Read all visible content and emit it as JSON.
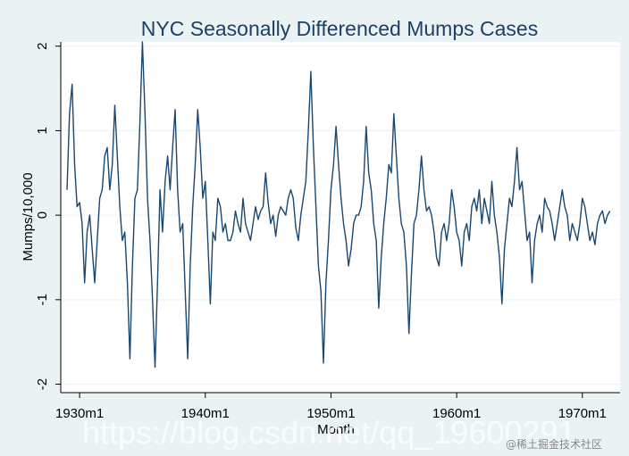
{
  "chart_data": {
    "type": "line",
    "title": "NYC Seasonally Differenced Mumps Cases",
    "xlabel": "Month",
    "ylabel": "Mumps/10,000",
    "xlim": [
      1928.5,
      1973.0
    ],
    "ylim": [
      -2.1,
      2.05
    ],
    "x_ticks": [
      {
        "value": 1930,
        "label": "1930m1"
      },
      {
        "value": 1940,
        "label": "1940m1"
      },
      {
        "value": 1950,
        "label": "1950m1"
      },
      {
        "value": 1960,
        "label": "1960m1"
      },
      {
        "value": 1970,
        "label": "1970m1"
      }
    ],
    "y_ticks": [
      {
        "value": 2,
        "label": "2"
      },
      {
        "value": 1,
        "label": "1"
      },
      {
        "value": 0,
        "label": "0"
      },
      {
        "value": -1,
        "label": "-1"
      },
      {
        "value": -2,
        "label": "-2"
      }
    ],
    "grid": true,
    "legend": "none",
    "colors": {
      "line": "#1a476f",
      "title": "#1e3f66",
      "background": "#eaf2f3",
      "plot_area": "#ffffff"
    },
    "series": [
      {
        "values": [
          [
            1929.0,
            0.3
          ],
          [
            1929.2,
            1.2
          ],
          [
            1929.4,
            1.55
          ],
          [
            1929.6,
            0.6
          ],
          [
            1929.8,
            0.1
          ],
          [
            1930.0,
            0.15
          ],
          [
            1930.2,
            -0.1
          ],
          [
            1930.4,
            -0.8
          ],
          [
            1930.6,
            -0.2
          ],
          [
            1930.8,
            0.0
          ],
          [
            1931.0,
            -0.4
          ],
          [
            1931.2,
            -0.8
          ],
          [
            1931.4,
            -0.3
          ],
          [
            1931.6,
            0.2
          ],
          [
            1931.8,
            0.3
          ],
          [
            1932.0,
            0.7
          ],
          [
            1932.2,
            0.8
          ],
          [
            1932.4,
            0.3
          ],
          [
            1932.6,
            0.6
          ],
          [
            1932.8,
            1.3
          ],
          [
            1933.0,
            0.7
          ],
          [
            1933.2,
            0.1
          ],
          [
            1933.4,
            -0.3
          ],
          [
            1933.6,
            -0.2
          ],
          [
            1933.8,
            -0.8
          ],
          [
            1934.0,
            -1.7
          ],
          [
            1934.2,
            -0.6
          ],
          [
            1934.4,
            0.2
          ],
          [
            1934.6,
            0.3
          ],
          [
            1934.8,
            1.1
          ],
          [
            1935.0,
            2.05
          ],
          [
            1935.2,
            1.2
          ],
          [
            1935.4,
            0.2
          ],
          [
            1935.6,
            -0.3
          ],
          [
            1935.8,
            -1.0
          ],
          [
            1936.0,
            -1.8
          ],
          [
            1936.2,
            -0.8
          ],
          [
            1936.4,
            0.3
          ],
          [
            1936.6,
            -0.2
          ],
          [
            1936.8,
            0.4
          ],
          [
            1937.0,
            0.7
          ],
          [
            1937.2,
            0.3
          ],
          [
            1937.4,
            0.8
          ],
          [
            1937.6,
            1.25
          ],
          [
            1937.8,
            0.3
          ],
          [
            1938.0,
            -0.2
          ],
          [
            1938.2,
            -0.1
          ],
          [
            1938.4,
            -0.9
          ],
          [
            1938.6,
            -1.7
          ],
          [
            1938.8,
            -0.6
          ],
          [
            1939.0,
            0.1
          ],
          [
            1939.2,
            0.6
          ],
          [
            1939.4,
            1.25
          ],
          [
            1939.6,
            0.8
          ],
          [
            1939.8,
            0.2
          ],
          [
            1940.0,
            0.4
          ],
          [
            1940.2,
            -0.3
          ],
          [
            1940.4,
            -1.05
          ],
          [
            1940.6,
            -0.2
          ],
          [
            1940.8,
            -0.3
          ],
          [
            1941.0,
            0.2
          ],
          [
            1941.2,
            0.1
          ],
          [
            1941.4,
            -0.2
          ],
          [
            1941.6,
            -0.1
          ],
          [
            1941.8,
            -0.3
          ],
          [
            1942.0,
            -0.3
          ],
          [
            1942.2,
            -0.2
          ],
          [
            1942.4,
            0.05
          ],
          [
            1942.6,
            -0.1
          ],
          [
            1942.8,
            -0.2
          ],
          [
            1943.0,
            0.2
          ],
          [
            1943.2,
            -0.1
          ],
          [
            1943.4,
            -0.2
          ],
          [
            1943.6,
            -0.3
          ],
          [
            1943.8,
            -0.1
          ],
          [
            1944.0,
            0.1
          ],
          [
            1944.2,
            -0.05
          ],
          [
            1944.4,
            0.05
          ],
          [
            1944.6,
            0.1
          ],
          [
            1944.8,
            0.5
          ],
          [
            1945.0,
            0.15
          ],
          [
            1945.2,
            -0.1
          ],
          [
            1945.4,
            0.0
          ],
          [
            1945.6,
            -0.25
          ],
          [
            1945.8,
            0.0
          ],
          [
            1946.0,
            0.1
          ],
          [
            1946.2,
            0.05
          ],
          [
            1946.4,
            0.0
          ],
          [
            1946.6,
            0.2
          ],
          [
            1946.8,
            0.3
          ],
          [
            1947.0,
            0.2
          ],
          [
            1947.2,
            -0.15
          ],
          [
            1947.4,
            -0.3
          ],
          [
            1947.6,
            0.0
          ],
          [
            1947.8,
            0.2
          ],
          [
            1948.0,
            0.4
          ],
          [
            1948.2,
            1.0
          ],
          [
            1948.4,
            1.7
          ],
          [
            1948.6,
            0.8
          ],
          [
            1948.8,
            0.1
          ],
          [
            1949.0,
            -0.6
          ],
          [
            1949.2,
            -0.9
          ],
          [
            1949.4,
            -1.75
          ],
          [
            1949.6,
            -0.8
          ],
          [
            1949.8,
            -0.3
          ],
          [
            1950.0,
            0.3
          ],
          [
            1950.2,
            0.6
          ],
          [
            1950.4,
            1.05
          ],
          [
            1950.6,
            0.6
          ],
          [
            1950.8,
            0.2
          ],
          [
            1951.0,
            -0.1
          ],
          [
            1951.2,
            -0.3
          ],
          [
            1951.4,
            -0.6
          ],
          [
            1951.6,
            -0.4
          ],
          [
            1951.8,
            -0.1
          ],
          [
            1952.0,
            0.0
          ],
          [
            1952.2,
            0.0
          ],
          [
            1952.4,
            0.1
          ],
          [
            1952.6,
            0.4
          ],
          [
            1952.8,
            1.05
          ],
          [
            1953.0,
            0.5
          ],
          [
            1953.2,
            0.3
          ],
          [
            1953.4,
            -0.1
          ],
          [
            1953.6,
            -0.3
          ],
          [
            1953.8,
            -1.1
          ],
          [
            1954.0,
            -0.5
          ],
          [
            1954.2,
            -0.1
          ],
          [
            1954.4,
            0.2
          ],
          [
            1954.6,
            0.6
          ],
          [
            1954.8,
            0.5
          ],
          [
            1955.0,
            1.2
          ],
          [
            1955.2,
            0.7
          ],
          [
            1955.4,
            0.2
          ],
          [
            1955.6,
            -0.1
          ],
          [
            1955.8,
            -0.2
          ],
          [
            1956.0,
            -0.6
          ],
          [
            1956.2,
            -1.4
          ],
          [
            1956.4,
            -0.7
          ],
          [
            1956.6,
            -0.1
          ],
          [
            1956.8,
            0.0
          ],
          [
            1957.0,
            0.3
          ],
          [
            1957.2,
            0.7
          ],
          [
            1957.4,
            0.3
          ],
          [
            1957.6,
            0.05
          ],
          [
            1957.8,
            0.1
          ],
          [
            1958.0,
            0.0
          ],
          [
            1958.2,
            -0.2
          ],
          [
            1958.4,
            -0.5
          ],
          [
            1958.6,
            -0.6
          ],
          [
            1958.8,
            -0.2
          ],
          [
            1959.0,
            -0.1
          ],
          [
            1959.2,
            -0.3
          ],
          [
            1959.4,
            -0.1
          ],
          [
            1959.6,
            0.3
          ],
          [
            1959.8,
            0.1
          ],
          [
            1960.0,
            -0.2
          ],
          [
            1960.2,
            -0.3
          ],
          [
            1960.4,
            -0.6
          ],
          [
            1960.6,
            -0.2
          ],
          [
            1960.8,
            -0.1
          ],
          [
            1961.0,
            -0.3
          ],
          [
            1961.2,
            0.1
          ],
          [
            1961.4,
            0.2
          ],
          [
            1961.6,
            0.05
          ],
          [
            1961.8,
            0.3
          ],
          [
            1962.0,
            -0.1
          ],
          [
            1962.2,
            0.2
          ],
          [
            1962.4,
            0.05
          ],
          [
            1962.6,
            -0.1
          ],
          [
            1962.8,
            0.4
          ],
          [
            1963.0,
            0.0
          ],
          [
            1963.2,
            -0.2
          ],
          [
            1963.4,
            -0.5
          ],
          [
            1963.6,
            -1.05
          ],
          [
            1963.8,
            -0.4
          ],
          [
            1964.0,
            -0.1
          ],
          [
            1964.2,
            0.2
          ],
          [
            1964.4,
            0.1
          ],
          [
            1964.6,
            0.4
          ],
          [
            1964.8,
            0.8
          ],
          [
            1965.0,
            0.3
          ],
          [
            1965.2,
            0.4
          ],
          [
            1965.4,
            0.05
          ],
          [
            1965.6,
            -0.3
          ],
          [
            1965.8,
            -0.2
          ],
          [
            1966.0,
            -0.8
          ],
          [
            1966.2,
            -0.3
          ],
          [
            1966.4,
            -0.1
          ],
          [
            1966.6,
            0.0
          ],
          [
            1966.8,
            -0.2
          ],
          [
            1967.0,
            0.2
          ],
          [
            1967.2,
            0.1
          ],
          [
            1967.4,
            0.05
          ],
          [
            1967.6,
            -0.1
          ],
          [
            1967.8,
            -0.3
          ],
          [
            1968.0,
            -0.1
          ],
          [
            1968.2,
            0.1
          ],
          [
            1968.4,
            0.3
          ],
          [
            1968.6,
            0.1
          ],
          [
            1968.8,
            0.0
          ],
          [
            1969.0,
            -0.3
          ],
          [
            1969.2,
            -0.1
          ],
          [
            1969.4,
            -0.2
          ],
          [
            1969.6,
            -0.3
          ],
          [
            1969.8,
            -0.1
          ],
          [
            1970.0,
            0.2
          ],
          [
            1970.2,
            0.1
          ],
          [
            1970.4,
            -0.1
          ],
          [
            1970.6,
            -0.3
          ],
          [
            1970.8,
            -0.2
          ],
          [
            1971.0,
            -0.35
          ],
          [
            1971.2,
            -0.1
          ],
          [
            1971.4,
            0.0
          ],
          [
            1971.6,
            0.05
          ],
          [
            1971.8,
            -0.1
          ],
          [
            1972.0,
            0.0
          ],
          [
            1972.2,
            0.05
          ]
        ]
      }
    ]
  },
  "watermark": {
    "text": "https://blog.csdn.net/qq_19600291",
    "badge": "@稀土掘金技术社区"
  }
}
